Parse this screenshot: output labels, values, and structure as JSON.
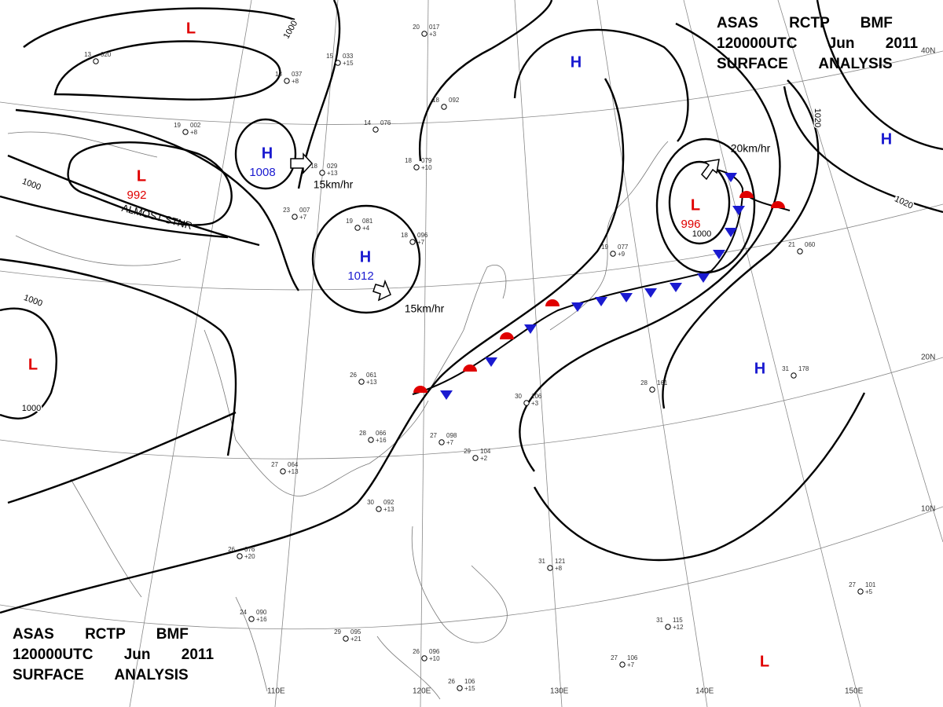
{
  "header": {
    "line1": "ASAS RCTP BMF",
    "line2": "120000UTC Jun 2011",
    "line3": "SURFACE ANALYSIS"
  },
  "grid_labels": {
    "lon": [
      "110E",
      "120E",
      "130E",
      "140E",
      "150E"
    ],
    "lat": [
      "10N",
      "20N",
      "40N"
    ]
  },
  "pressure_centers": [
    {
      "type": "H",
      "value": "1008"
    },
    {
      "type": "H",
      "value": "1012"
    },
    {
      "type": "L",
      "value": "992"
    },
    {
      "type": "L",
      "value": "996"
    },
    {
      "type": "H"
    },
    {
      "type": "H"
    },
    {
      "type": "H"
    },
    {
      "type": "L"
    },
    {
      "type": "L"
    },
    {
      "type": "L"
    }
  ],
  "isobar_labels": [
    "1000",
    "1000",
    "1000",
    "1000",
    "1000",
    "1020",
    "1020"
  ],
  "motion_labels": [
    "15km/hr",
    "15km/hr",
    "20km/hr"
  ],
  "annotation": "ALMOST STNR",
  "stations": [
    {
      "temp": "20",
      "pressure": "017",
      "tendency": "+3"
    },
    {
      "temp": "13",
      "pressure": "020"
    },
    {
      "temp": "15",
      "pressure": "033",
      "tendency": "+15"
    },
    {
      "temp": "13",
      "pressure": "037",
      "tendency": "+8"
    },
    {
      "temp": "18",
      "pressure": "092"
    },
    {
      "temp": "14",
      "pressure": "076"
    },
    {
      "temp": "19",
      "pressure": "002",
      "tendency": "+8"
    },
    {
      "temp": "18",
      "pressure": "029",
      "tendency": "+13"
    },
    {
      "temp": "18",
      "pressure": "079",
      "tendency": "+10"
    },
    {
      "temp": "23",
      "pressure": "007",
      "tendency": "+7"
    },
    {
      "temp": "19",
      "pressure": "081",
      "tendency": "+4"
    },
    {
      "temp": "18",
      "pressure": "096",
      "tendency": "+7"
    },
    {
      "temp": "26",
      "pressure": "061",
      "tendency": "+13"
    },
    {
      "temp": "28",
      "pressure": "066",
      "tendency": "+16"
    },
    {
      "temp": "27",
      "pressure": "064",
      "tendency": "+13"
    },
    {
      "temp": "26",
      "pressure": "076",
      "tendency": "+20"
    },
    {
      "temp": "30",
      "pressure": "092",
      "tendency": "+13"
    },
    {
      "temp": "27",
      "pressure": "098",
      "tendency": "+7"
    },
    {
      "temp": "29",
      "pressure": "104",
      "tendency": "+2"
    },
    {
      "temp": "30",
      "pressure": "106",
      "tendency": "+3"
    },
    {
      "temp": "28",
      "pressure": "161"
    },
    {
      "temp": "31",
      "pressure": "178"
    },
    {
      "temp": "31",
      "pressure": "115",
      "tendency": "+12"
    },
    {
      "temp": "27",
      "pressure": "106",
      "tendency": "+7"
    },
    {
      "temp": "27",
      "pressure": "101",
      "tendency": "+5"
    },
    {
      "temp": "29",
      "pressure": "095",
      "tendency": "+21"
    },
    {
      "temp": "24",
      "pressure": "090",
      "tendency": "+16"
    },
    {
      "temp": "26",
      "pressure": "096",
      "tendency": "+10"
    },
    {
      "temp": "26",
      "pressure": "106",
      "tendency": "+15"
    },
    {
      "temp": "31",
      "pressure": "121",
      "tendency": "+8"
    },
    {
      "temp": "21",
      "pressure": "060"
    },
    {
      "temp": "19",
      "pressure": "077",
      "tendency": "+9"
    }
  ]
}
